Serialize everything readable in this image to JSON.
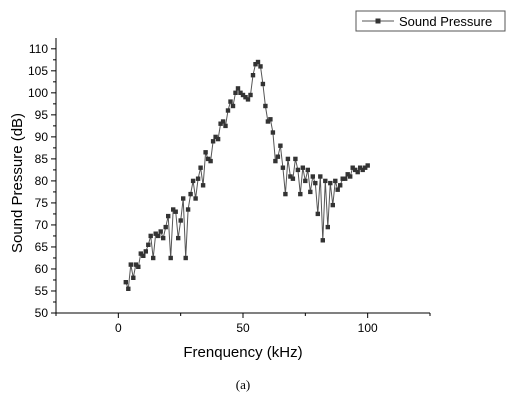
{
  "chart_data": {
    "type": "line",
    "title": "",
    "xlabel": "Frenquency (kHz)",
    "ylabel": "Sound Pressure (dB)",
    "xlim": [
      -25,
      125
    ],
    "ylim": [
      50,
      112
    ],
    "xticks": [
      0,
      50,
      100
    ],
    "yticks": [
      50,
      55,
      60,
      65,
      70,
      75,
      80,
      85,
      90,
      95,
      100,
      105,
      110
    ],
    "grid": false,
    "legend_position": "top-right",
    "marker": "square",
    "line_color": "#555555",
    "marker_color": "#333333",
    "series": [
      {
        "name": "Sound Pressure",
        "x": [
          3,
          4,
          5,
          6,
          7,
          8,
          9,
          10,
          11,
          12,
          13,
          14,
          15,
          16,
          17,
          18,
          19,
          20,
          21,
          22,
          23,
          24,
          25,
          26,
          27,
          28,
          29,
          30,
          31,
          32,
          33,
          34,
          35,
          36,
          37,
          38,
          39,
          40,
          41,
          42,
          43,
          44,
          45,
          46,
          47,
          48,
          49,
          50,
          51,
          52,
          53,
          54,
          55,
          56,
          57,
          58,
          59,
          60,
          61,
          62,
          63,
          64,
          65,
          66,
          67,
          68,
          69,
          70,
          71,
          72,
          73,
          74,
          75,
          76,
          77,
          78,
          79,
          80,
          81,
          82,
          83,
          84,
          85,
          86,
          87,
          88,
          89,
          90,
          91,
          92,
          93,
          94,
          95,
          96,
          97,
          98,
          99,
          100
        ],
        "y": [
          57,
          55.5,
          61,
          58,
          61,
          60.5,
          63.5,
          63,
          64,
          65.5,
          67.5,
          62.5,
          68,
          67.5,
          68.5,
          67,
          69.5,
          72,
          62.5,
          73.5,
          73,
          67,
          71,
          76,
          62.5,
          73.5,
          77,
          80,
          76,
          80.5,
          83,
          79,
          86.5,
          85,
          84.5,
          89,
          90,
          89.5,
          93,
          93.5,
          92.5,
          96,
          98,
          97,
          100,
          101,
          100,
          99.5,
          99,
          98.5,
          99.5,
          104,
          106.5,
          107,
          106,
          102,
          97,
          93.5,
          94,
          91,
          84.5,
          85.5,
          88,
          83,
          77,
          85,
          81,
          80.5,
          85,
          82.5,
          77,
          83,
          80,
          82.5,
          77.5,
          81,
          79.5,
          72.5,
          81,
          66.5,
          80,
          69.5,
          79.5,
          74.5,
          80,
          78,
          79,
          80.5,
          80.5,
          81.5,
          81,
          83,
          82.5,
          82,
          83,
          82.5,
          83,
          83.5
        ]
      }
    ]
  },
  "caption": "(a)"
}
